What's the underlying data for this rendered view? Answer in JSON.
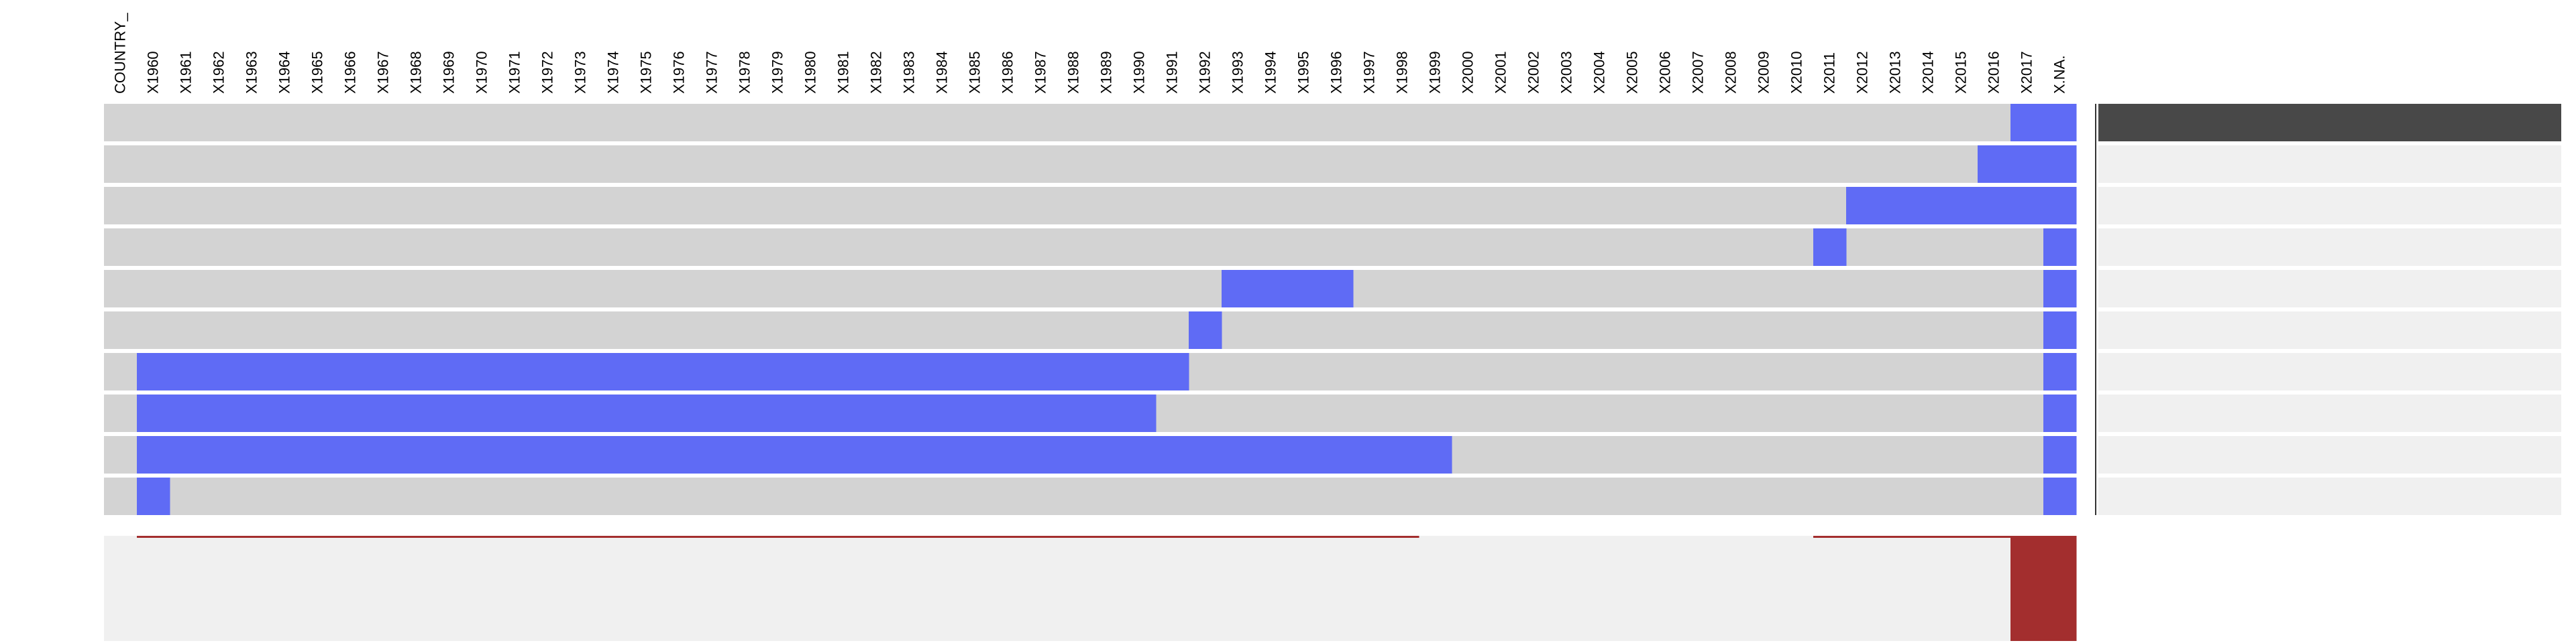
{
  "chart_data": {
    "type": "heatmap",
    "title": "",
    "xlabel": "",
    "ylabel": "",
    "columns": [
      "COUNTRY_",
      "X1960",
      "X1961",
      "X1962",
      "X1963",
      "X1964",
      "X1965",
      "X1966",
      "X1967",
      "X1968",
      "X1969",
      "X1970",
      "X1971",
      "X1972",
      "X1973",
      "X1974",
      "X1975",
      "X1976",
      "X1977",
      "X1978",
      "X1979",
      "X1980",
      "X1981",
      "X1982",
      "X1983",
      "X1984",
      "X1985",
      "X1986",
      "X1987",
      "X1988",
      "X1989",
      "X1990",
      "X1991",
      "X1992",
      "X1993",
      "X1994",
      "X1995",
      "X1996",
      "X1997",
      "X1998",
      "X1999",
      "X2000",
      "X2001",
      "X2002",
      "X2003",
      "X2004",
      "X2005",
      "X2006",
      "X2007",
      "X2008",
      "X2009",
      "X2010",
      "X2011",
      "X2012",
      "X2013",
      "X2014",
      "X2015",
      "X2016",
      "X2017",
      "X.NA."
    ],
    "intersections": [
      {
        "missing": [
          "X2017",
          "X.NA."
        ],
        "frequency": 1.0
      },
      {
        "missing": [
          "X2016",
          "X2017",
          "X.NA."
        ],
        "frequency": 0.0
      },
      {
        "missing": [
          "X2012",
          "X2013",
          "X2014",
          "X2015",
          "X2016",
          "X2017",
          "X.NA."
        ],
        "frequency": 0.0
      },
      {
        "missing": [
          "X2011",
          "X.NA."
        ],
        "frequency": 0.0
      },
      {
        "missing": [
          "X1993",
          "X1994",
          "X1995",
          "X1996",
          "X.NA."
        ],
        "frequency": 0.0
      },
      {
        "missing": [
          "X1992",
          "X.NA."
        ],
        "frequency": 0.0
      },
      {
        "missing": [
          "X1960",
          "X1961",
          "X1962",
          "X1963",
          "X1964",
          "X1965",
          "X1966",
          "X1967",
          "X1968",
          "X1969",
          "X1970",
          "X1971",
          "X1972",
          "X1973",
          "X1974",
          "X1975",
          "X1976",
          "X1977",
          "X1978",
          "X1979",
          "X1980",
          "X1981",
          "X1982",
          "X1983",
          "X1984",
          "X1985",
          "X1986",
          "X1987",
          "X1988",
          "X1989",
          "X1990",
          "X1991",
          "X.NA."
        ],
        "frequency": 0.0
      },
      {
        "missing": [
          "X1960",
          "X1961",
          "X1962",
          "X1963",
          "X1964",
          "X1965",
          "X1966",
          "X1967",
          "X1968",
          "X1969",
          "X1970",
          "X1971",
          "X1972",
          "X1973",
          "X1974",
          "X1975",
          "X1976",
          "X1977",
          "X1978",
          "X1979",
          "X1980",
          "X1981",
          "X1982",
          "X1983",
          "X1984",
          "X1985",
          "X1986",
          "X1987",
          "X1988",
          "X1989",
          "X1990",
          "X.NA."
        ],
        "frequency": 0.0
      },
      {
        "missing": [
          "X1960",
          "X1961",
          "X1962",
          "X1963",
          "X1964",
          "X1965",
          "X1966",
          "X1967",
          "X1968",
          "X1969",
          "X1970",
          "X1971",
          "X1972",
          "X1973",
          "X1974",
          "X1975",
          "X1976",
          "X1977",
          "X1978",
          "X1979",
          "X1980",
          "X1981",
          "X1982",
          "X1983",
          "X1984",
          "X1985",
          "X1986",
          "X1987",
          "X1988",
          "X1989",
          "X1990",
          "X1991",
          "X1992",
          "X1993",
          "X1994",
          "X1995",
          "X1996",
          "X1997",
          "X1998",
          "X1999",
          "X.NA."
        ],
        "frequency": 0.0
      },
      {
        "missing": [
          "X1960",
          "X.NA."
        ],
        "frequency": 0.0
      }
    ],
    "column_missing_fraction": [
      0,
      0.003,
      0.003,
      0.003,
      0.003,
      0.003,
      0.003,
      0.003,
      0.003,
      0.003,
      0.003,
      0.003,
      0.003,
      0.003,
      0.003,
      0.003,
      0.003,
      0.003,
      0.003,
      0.003,
      0.003,
      0.003,
      0.003,
      0.003,
      0.003,
      0.003,
      0.003,
      0.003,
      0.003,
      0.003,
      0.003,
      0.002,
      0.002,
      0.002,
      0.002,
      0.002,
      0.002,
      0.002,
      0.002,
      0.002,
      0.0,
      0.0,
      0.0,
      0.0,
      0.0,
      0.0,
      0.0,
      0.0,
      0.0,
      0.0,
      0.0,
      0.0,
      0.002,
      0.002,
      0.002,
      0.002,
      0.002,
      0.002,
      1.0,
      1.0
    ],
    "grid": false,
    "legend": "none"
  },
  "colors": {
    "observed": "#d3d3d3",
    "missing": "#5f6bf5",
    "frequency_bar": "#484848",
    "frequency_track": "#f0f0f0",
    "column_bar": "#a32e2e",
    "column_track": "#f0f0f0"
  }
}
